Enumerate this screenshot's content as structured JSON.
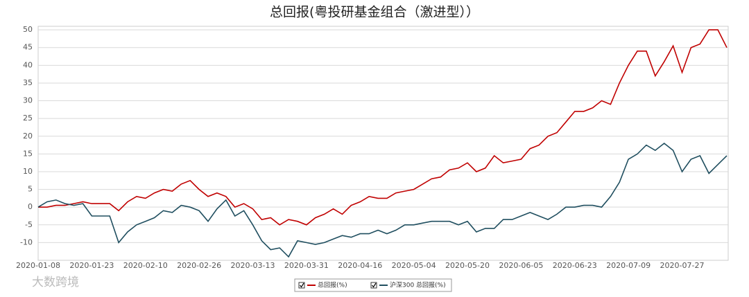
{
  "chart_data": {
    "type": "line",
    "title": "总回报(粤投研基金组合（激进型））",
    "categories": [
      "2020-01-08",
      null,
      null,
      null,
      null,
      null,
      "2020-01-23",
      null,
      null,
      null,
      null,
      null,
      "2020-02-10",
      null,
      null,
      null,
      null,
      null,
      "2020-02-26",
      null,
      null,
      null,
      null,
      null,
      "2020-03-13",
      null,
      null,
      null,
      null,
      null,
      "2020-03-31",
      null,
      null,
      null,
      null,
      null,
      "2020-04-16",
      null,
      null,
      null,
      null,
      null,
      "2020-05-04",
      null,
      null,
      null,
      null,
      null,
      "2020-05-20",
      null,
      null,
      null,
      null,
      null,
      "2020-06-05",
      null,
      null,
      null,
      null,
      null,
      "2020-06-23",
      null,
      null,
      null,
      null,
      null,
      "2020-07-09",
      null,
      null,
      null,
      null,
      null,
      "2020-07-27",
      null,
      null,
      null,
      null,
      null
    ],
    "series": [
      {
        "name": "总回报(%)",
        "color": "#c00000",
        "values": [
          0,
          0,
          0.5,
          0.5,
          1,
          1.5,
          1,
          1,
          1,
          -1,
          1.5,
          3,
          2.5,
          4,
          5,
          4.5,
          6.5,
          7.5,
          5,
          3,
          4,
          3,
          0,
          1,
          -0.5,
          -3.5,
          -3,
          -5,
          -3.5,
          -4,
          -5,
          -3,
          -2,
          -0.5,
          -2,
          0.5,
          1.5,
          3,
          2.5,
          2.5,
          4,
          4.5,
          5,
          6.5,
          8,
          8.5,
          10.5,
          11,
          12.5,
          10,
          11,
          14.5,
          12.5,
          13,
          13.5,
          16.5,
          17.5,
          20,
          21,
          24,
          27,
          27,
          28,
          30,
          29,
          35,
          40,
          44,
          44,
          37,
          41,
          45.5,
          38,
          45,
          46,
          50,
          50,
          45
        ]
      },
      {
        "name": "沪深300 总回报(%)",
        "color": "#1f4e5f",
        "values": [
          0,
          1.5,
          2,
          1,
          0.5,
          1,
          -2.5,
          -2.5,
          -2.5,
          -10,
          -7,
          -5,
          -4,
          -3,
          -1,
          -1.5,
          0.5,
          0,
          -1,
          -4,
          -0.5,
          2,
          -2.5,
          -1,
          -5,
          -9.5,
          -12,
          -11.5,
          -14,
          -9.5,
          -10,
          -10.5,
          -10,
          -9,
          -8,
          -8.5,
          -7.5,
          -7.5,
          -6.5,
          -7.5,
          -6.5,
          -5,
          -5,
          -4.5,
          -4,
          -4,
          -4,
          -5,
          -4,
          -7,
          -6,
          -6,
          -3.5,
          -3.5,
          -2.5,
          -1.5,
          -2.5,
          -3.5,
          -2,
          0,
          0,
          0.5,
          0.5,
          0,
          3,
          7,
          13.5,
          15,
          17.5,
          16,
          18,
          16,
          10,
          13.5,
          14.5,
          9.5,
          12,
          14.5
        ]
      }
    ],
    "ylim": [
      -15,
      51
    ],
    "yticks": [
      -10,
      -5,
      0,
      5,
      10,
      15,
      20,
      25,
      30,
      35,
      40,
      45,
      50
    ],
    "grid": true,
    "legend": "bottom"
  },
  "watermark": "大数跨境"
}
